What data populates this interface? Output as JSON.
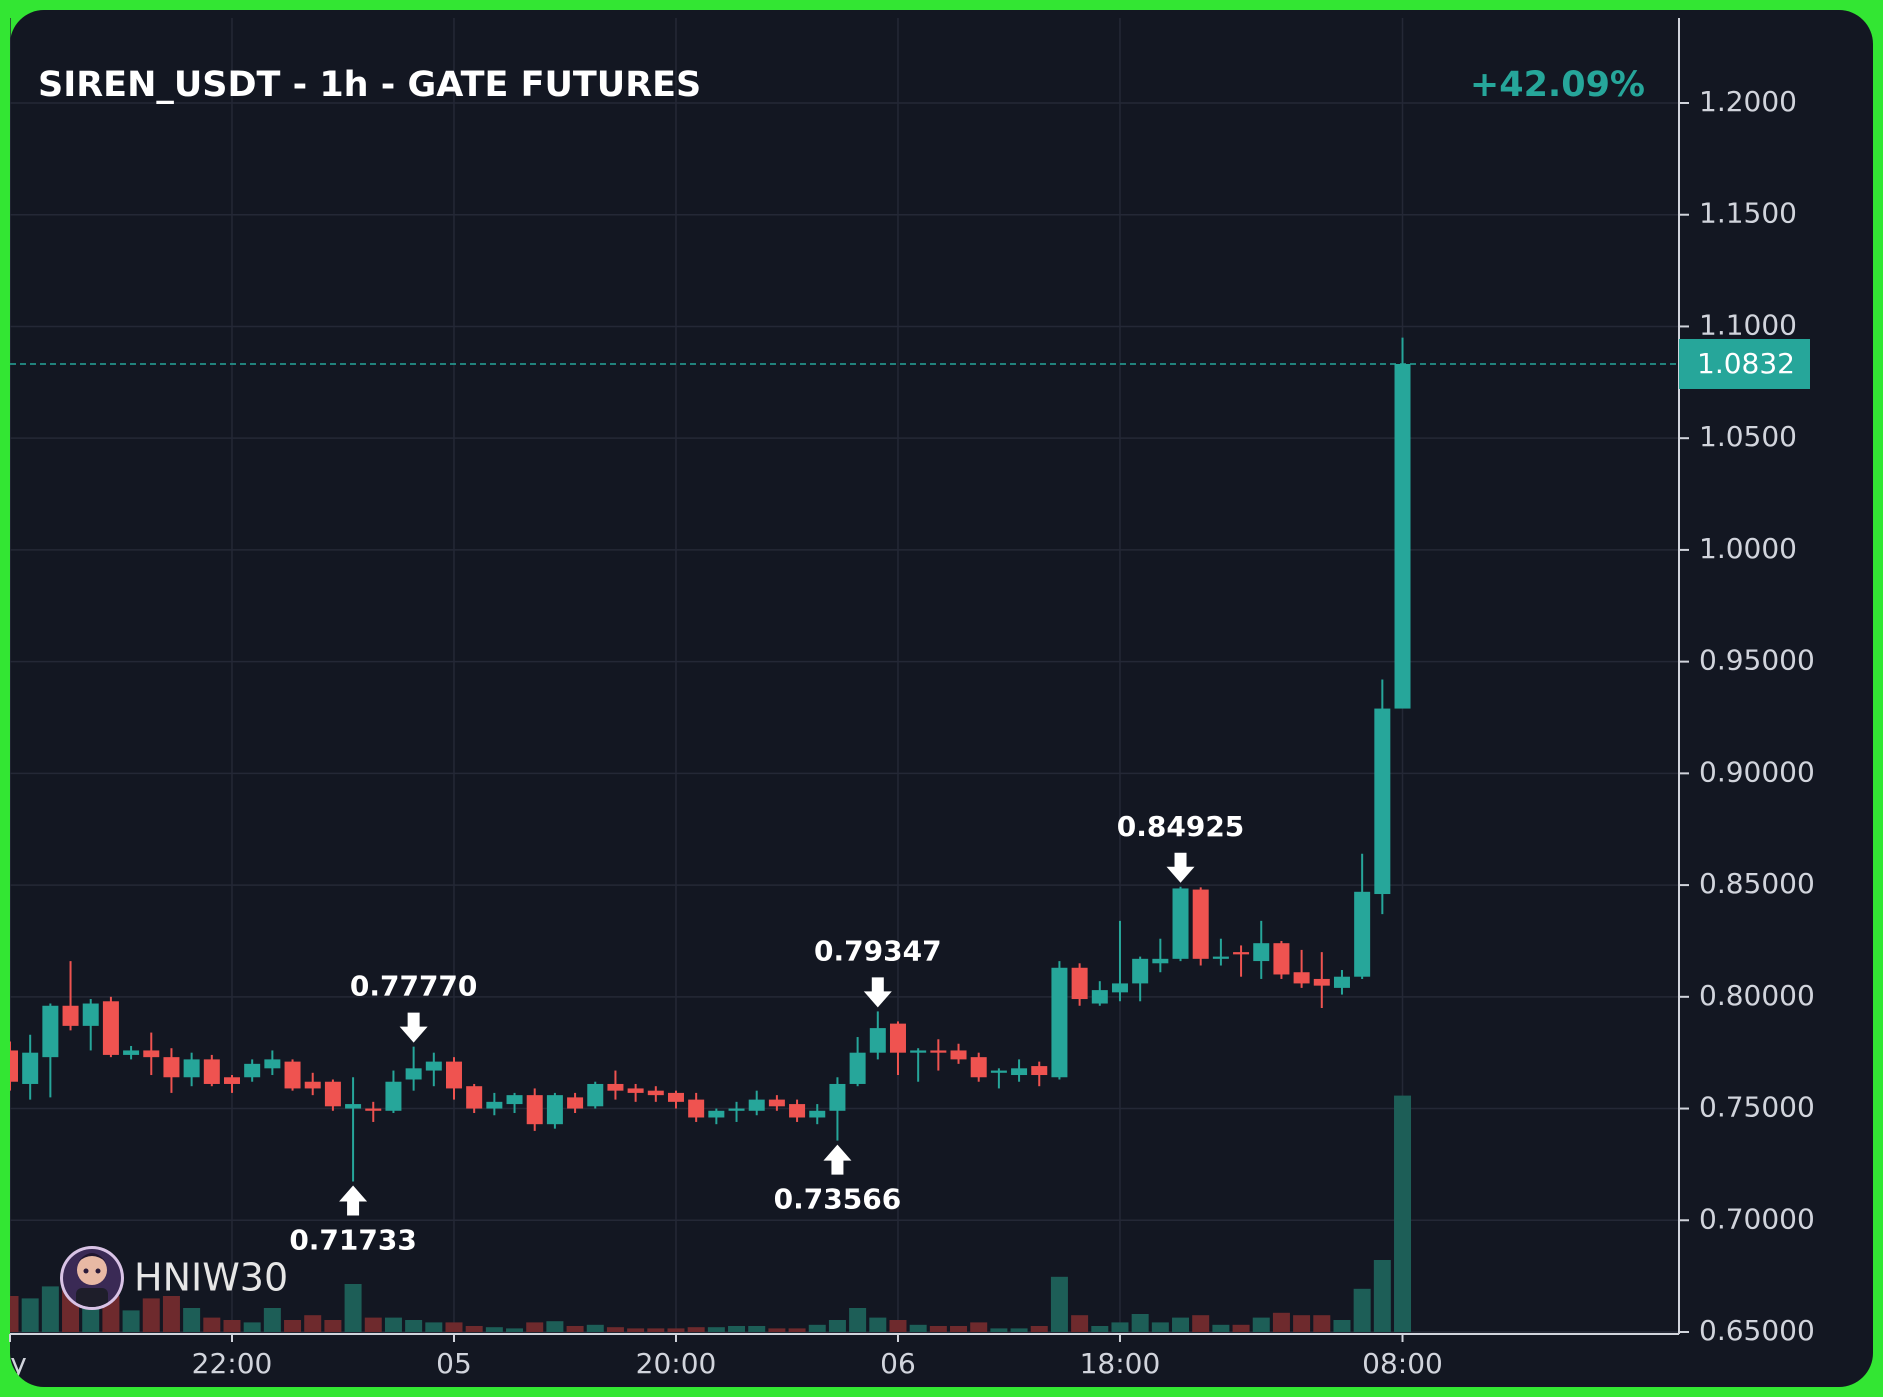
{
  "chart_data": {
    "type": "candlestick",
    "title": "SIREN_USDT - 1h - GATE FUTURES",
    "change": "+42.09%",
    "watermark": "HNIW30",
    "up_color": "#26a69a",
    "down_color": "#ef5350",
    "up_volume_color": "#1d5e57",
    "down_volume_color": "#6e2a2d",
    "grid": true,
    "xlim": [
      0,
      82.7
    ],
    "xticks": [
      {
        "value": 0,
        "label": "ay"
      },
      {
        "value": 11,
        "label": "22:00"
      },
      {
        "value": 22,
        "label": "05"
      },
      {
        "value": 33,
        "label": "20:00"
      },
      {
        "value": 44,
        "label": "06"
      },
      {
        "value": 55,
        "label": "18:00"
      },
      {
        "value": 69,
        "label": "08:00"
      }
    ],
    "ylim": [
      0.65,
      1.2
    ],
    "yticks": [
      {
        "value": 0.65,
        "label": "0.65000"
      },
      {
        "value": 0.7,
        "label": "0.70000"
      },
      {
        "value": 0.75,
        "label": "0.75000"
      },
      {
        "value": 0.8,
        "label": "0.80000"
      },
      {
        "value": 0.85,
        "label": "0.85000"
      },
      {
        "value": 0.9,
        "label": "0.90000"
      },
      {
        "value": 0.95,
        "label": "0.95000"
      },
      {
        "value": 1.0,
        "label": "1.0000"
      },
      {
        "value": 1.05,
        "label": "1.0500"
      },
      {
        "value": 1.1,
        "label": "1.1000"
      },
      {
        "value": 1.15,
        "label": "1.1500"
      },
      {
        "value": 1.2,
        "label": "1.2000"
      }
    ],
    "last_price": {
      "value": 1.0832,
      "label": "1.0832"
    },
    "volume_ylim": [
      0,
      200
    ],
    "candles": {
      "open": [
        0.776,
        0.761,
        0.773,
        0.796,
        0.787,
        0.798,
        0.774,
        0.776,
        0.773,
        0.764,
        0.772,
        0.764,
        0.764,
        0.768,
        0.771,
        0.762,
        0.762,
        0.75,
        0.75,
        0.749,
        0.763,
        0.767,
        0.771,
        0.76,
        0.75,
        0.752,
        0.756,
        0.743,
        0.755,
        0.751,
        0.761,
        0.759,
        0.758,
        0.757,
        0.754,
        0.746,
        0.749,
        0.749,
        0.754,
        0.752,
        0.746,
        0.749,
        0.761,
        0.775,
        0.788,
        0.775,
        0.776,
        0.776,
        0.773,
        0.766,
        0.765,
        0.769,
        0.764,
        0.813,
        0.797,
        0.802,
        0.806,
        0.815,
        0.817,
        0.848,
        0.817,
        0.82,
        0.816,
        0.824,
        0.811,
        0.808,
        0.804,
        0.809,
        0.846,
        0.929
      ],
      "high": [
        0.78,
        0.783,
        0.797,
        0.816,
        0.799,
        0.8,
        0.778,
        0.784,
        0.777,
        0.775,
        0.774,
        0.765,
        0.772,
        0.776,
        0.772,
        0.766,
        0.763,
        0.764,
        0.753,
        0.767,
        0.7777,
        0.775,
        0.773,
        0.761,
        0.757,
        0.757,
        0.759,
        0.757,
        0.757,
        0.762,
        0.767,
        0.761,
        0.76,
        0.758,
        0.757,
        0.75,
        0.753,
        0.758,
        0.756,
        0.754,
        0.752,
        0.764,
        0.782,
        0.79347,
        0.789,
        0.777,
        0.781,
        0.779,
        0.775,
        0.768,
        0.772,
        0.771,
        0.816,
        0.815,
        0.807,
        0.834,
        0.818,
        0.826,
        0.84925,
        0.849,
        0.826,
        0.823,
        0.834,
        0.825,
        0.821,
        0.82,
        0.812,
        0.864,
        0.942,
        1.095
      ],
      "low": [
        0.758,
        0.754,
        0.755,
        0.785,
        0.776,
        0.773,
        0.772,
        0.765,
        0.757,
        0.76,
        0.76,
        0.757,
        0.762,
        0.765,
        0.758,
        0.756,
        0.749,
        0.71733,
        0.744,
        0.748,
        0.758,
        0.76,
        0.754,
        0.748,
        0.747,
        0.748,
        0.74,
        0.741,
        0.748,
        0.75,
        0.754,
        0.753,
        0.753,
        0.75,
        0.744,
        0.743,
        0.744,
        0.747,
        0.749,
        0.744,
        0.743,
        0.73566,
        0.76,
        0.772,
        0.765,
        0.762,
        0.767,
        0.77,
        0.762,
        0.759,
        0.762,
        0.76,
        0.763,
        0.796,
        0.796,
        0.798,
        0.798,
        0.811,
        0.816,
        0.814,
        0.814,
        0.809,
        0.808,
        0.808,
        0.804,
        0.795,
        0.801,
        0.808,
        0.837,
        0.929
      ],
      "close": [
        0.762,
        0.775,
        0.796,
        0.787,
        0.797,
        0.774,
        0.776,
        0.773,
        0.764,
        0.772,
        0.761,
        0.761,
        0.77,
        0.772,
        0.759,
        0.759,
        0.751,
        0.752,
        0.749,
        0.762,
        0.768,
        0.771,
        0.759,
        0.75,
        0.753,
        0.756,
        0.743,
        0.756,
        0.75,
        0.761,
        0.758,
        0.757,
        0.756,
        0.753,
        0.746,
        0.749,
        0.75,
        0.754,
        0.751,
        0.746,
        0.749,
        0.761,
        0.775,
        0.786,
        0.775,
        0.776,
        0.775,
        0.772,
        0.764,
        0.767,
        0.768,
        0.765,
        0.813,
        0.799,
        0.803,
        0.806,
        0.817,
        0.817,
        0.8485,
        0.817,
        0.818,
        0.819,
        0.824,
        0.81,
        0.806,
        0.805,
        0.809,
        0.847,
        0.929,
        1.0832
      ],
      "volume": [
        30,
        28,
        38,
        40,
        20,
        30,
        18,
        28,
        30,
        20,
        12,
        10,
        8,
        20,
        10,
        14,
        10,
        40,
        12,
        12,
        10,
        8,
        8,
        5,
        4,
        3,
        8,
        9,
        5,
        6,
        4,
        3,
        3,
        3,
        4,
        4,
        5,
        5,
        3,
        3,
        6,
        10,
        20,
        12,
        10,
        6,
        5,
        5,
        8,
        3,
        3,
        5,
        46,
        14,
        5,
        8,
        15,
        8,
        12,
        14,
        6,
        6,
        12,
        16,
        14,
        14,
        10,
        36,
        60,
        197
      ]
    },
    "annotations": [
      {
        "index": 17,
        "position": "below",
        "label": "0.71733"
      },
      {
        "index": 20,
        "position": "above",
        "label": "0.77770"
      },
      {
        "index": 41,
        "position": "below",
        "label": "0.73566"
      },
      {
        "index": 43,
        "position": "above",
        "label": "0.79347"
      },
      {
        "index": 58,
        "position": "above",
        "label": "0.84925"
      }
    ]
  }
}
